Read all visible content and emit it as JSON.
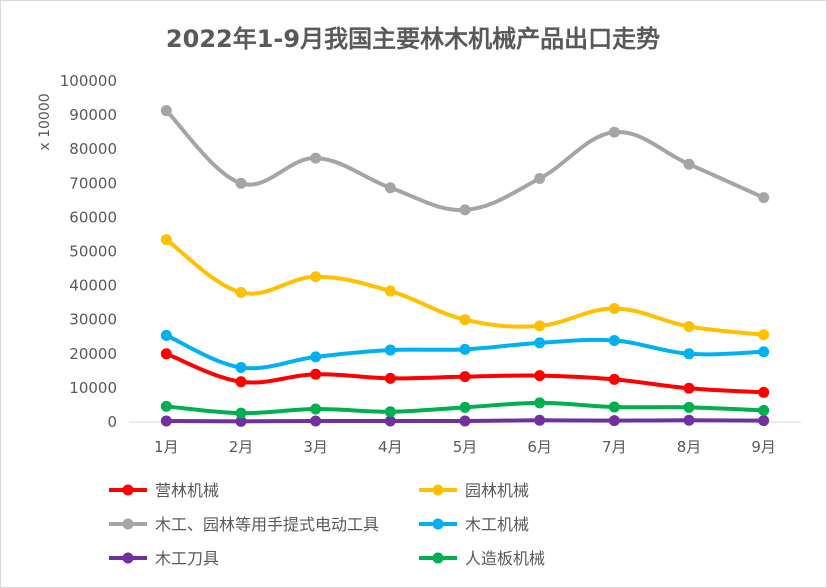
{
  "chart_data": {
    "type": "line",
    "title": "2022年1-9月我国主要林木机械产品出口走势",
    "unit_label": "x 10000",
    "categories": [
      "1月",
      "2月",
      "3月",
      "4月",
      "5月",
      "6月",
      "7月",
      "8月",
      "9月"
    ],
    "ylim": [
      0,
      100000
    ],
    "y_ticks": [
      "0",
      "10000",
      "20000",
      "30000",
      "40000",
      "50000",
      "60000",
      "70000",
      "80000",
      "90000",
      "100000"
    ],
    "grid": false,
    "legend_position": "bottom",
    "series": [
      {
        "name": "营林机械",
        "color": "#ff0000",
        "values": [
          20000,
          11800,
          14000,
          12800,
          13300,
          13600,
          12500,
          9900,
          8700
        ]
      },
      {
        "name": "园林机械",
        "color": "#ffc000",
        "values": [
          53500,
          38000,
          42600,
          38400,
          30000,
          28200,
          33300,
          28000,
          25600
        ]
      },
      {
        "name": "木工、园林等用手提式电动工具",
        "color": "#a5a5a5",
        "values": [
          91300,
          70000,
          77400,
          68700,
          62200,
          71400,
          85000,
          75600,
          65800
        ]
      },
      {
        "name": "木工机械",
        "color": "#00b0f0",
        "values": [
          25400,
          16000,
          19100,
          21100,
          21300,
          23200,
          23900,
          20000,
          20600
        ]
      },
      {
        "name": "木工刀具",
        "color": "#7030a0",
        "values": [
          300,
          200,
          300,
          300,
          300,
          500,
          400,
          500,
          400
        ]
      },
      {
        "name": "人造板机械",
        "color": "#00b050",
        "values": [
          4600,
          2600,
          3800,
          3000,
          4300,
          5600,
          4400,
          4300,
          3400
        ]
      }
    ]
  }
}
